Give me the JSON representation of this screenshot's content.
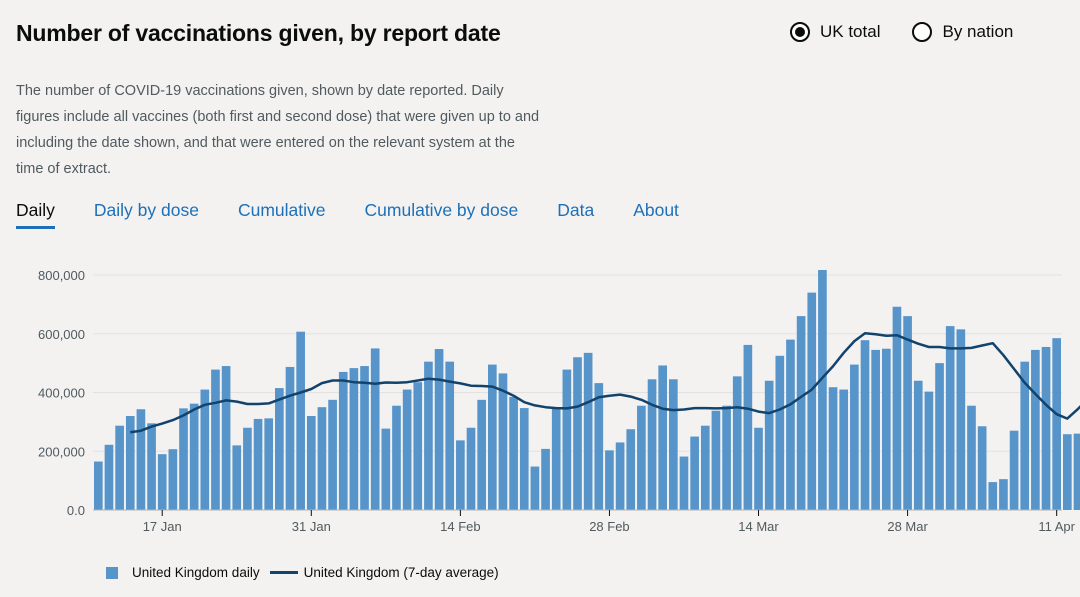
{
  "header": {
    "title": "Number of vaccinations given, by report date"
  },
  "radios": [
    {
      "label": "UK total",
      "selected": true
    },
    {
      "label": "By nation",
      "selected": false
    }
  ],
  "description": "The number of COVID-19 vaccinations given, shown by date reported. Daily figures include all vaccines (both first and second dose) that were given up to and including the date shown, and that were entered on the relevant system at the time of extract.",
  "tabs": [
    {
      "label": "Daily",
      "active": true
    },
    {
      "label": "Daily by dose",
      "active": false
    },
    {
      "label": "Cumulative",
      "active": false
    },
    {
      "label": "Cumulative by dose",
      "active": false
    },
    {
      "label": "Data",
      "active": false
    },
    {
      "label": "About",
      "active": false
    }
  ],
  "colors": {
    "bar": "#5694ca",
    "line": "#12436d",
    "grid": "#e1e1e1",
    "link": "#1d70b8"
  },
  "chart_data": {
    "type": "bar",
    "x_start": "2021-01-11",
    "x_end": "2021-04-12",
    "ylim": [
      0,
      800000
    ],
    "yticks": [
      0,
      200000,
      400000,
      600000,
      800000
    ],
    "ytick_labels": [
      "0.0",
      "200,000",
      "400,000",
      "600,000",
      "800,000"
    ],
    "xticks": [
      {
        "date": "2021-01-17",
        "label": "17 Jan"
      },
      {
        "date": "2021-01-31",
        "label": "31 Jan"
      },
      {
        "date": "2021-02-14",
        "label": "14 Feb"
      },
      {
        "date": "2021-02-28",
        "label": "28 Feb"
      },
      {
        "date": "2021-03-14",
        "label": "14 Mar"
      },
      {
        "date": "2021-03-28",
        "label": "28 Mar"
      },
      {
        "date": "2021-04-11",
        "label": "11 Apr"
      }
    ],
    "grid": true,
    "legend_position": "bottom-left",
    "series": [
      {
        "name": "United Kingdom daily",
        "kind": "bar",
        "values": [
          165000,
          222000,
          287000,
          320000,
          343000,
          295000,
          190000,
          207000,
          346000,
          362000,
          410000,
          478000,
          490000,
          220000,
          280000,
          310000,
          312000,
          415000,
          487000,
          607000,
          320000,
          350000,
          375000,
          470000,
          483000,
          490000,
          550000,
          277000,
          355000,
          410000,
          435000,
          505000,
          548000,
          505000,
          237000,
          280000,
          375000,
          495000,
          465000,
          385000,
          347000,
          148000,
          208000,
          350000,
          478000,
          520000,
          535000,
          432000,
          203000,
          230000,
          275000,
          355000,
          445000,
          492000,
          445000,
          182000,
          250000,
          287000,
          338000,
          355000,
          455000,
          562000,
          280000,
          440000,
          525000,
          580000,
          660000,
          740000,
          842000,
          418000,
          410000,
          495000,
          578000,
          545000,
          549000,
          692000,
          660000,
          440000,
          403000,
          500000,
          626000,
          615000,
          355000,
          285000,
          95000,
          105000,
          270000,
          505000,
          545000,
          555000,
          585000,
          258000,
          260000
        ]
      },
      {
        "name": "United Kingdom (7-day average)",
        "kind": "line",
        "start_index": 3,
        "values": [
          265000,
          270000,
          284000,
          294000,
          306000,
          322000,
          342000,
          358000,
          365000,
          373000,
          369000,
          361000,
          361000,
          363000,
          376000,
          389000,
          400000,
          412000,
          432000,
          441000,
          441000,
          435000,
          433000,
          430000,
          434000,
          433000,
          435000,
          441000,
          447000,
          444000,
          437000,
          431000,
          423000,
          422000,
          420000,
          406000,
          389000,
          367000,
          356000,
          350000,
          347000,
          346000,
          352000,
          367000,
          384000,
          389000,
          393000,
          386000,
          375000,
          358000,
          345000,
          340000,
          342000,
          347000,
          347000,
          346000,
          347000,
          350000,
          345000,
          335000,
          330000,
          342000,
          360000,
          385000,
          410000,
          450000,
          490000,
          535000,
          575000,
          602000,
          598000,
          593000,
          595000,
          580000,
          566000,
          555000,
          555000,
          550000,
          550000,
          552000,
          560000,
          568000,
          527000,
          480000,
          433000,
          395000,
          358000,
          326000,
          311000,
          344000,
          380000,
          403000,
          425000
        ]
      }
    ]
  },
  "legend": [
    {
      "label": "United Kingdom daily"
    },
    {
      "label": "United Kingdom (7-day average)"
    }
  ]
}
